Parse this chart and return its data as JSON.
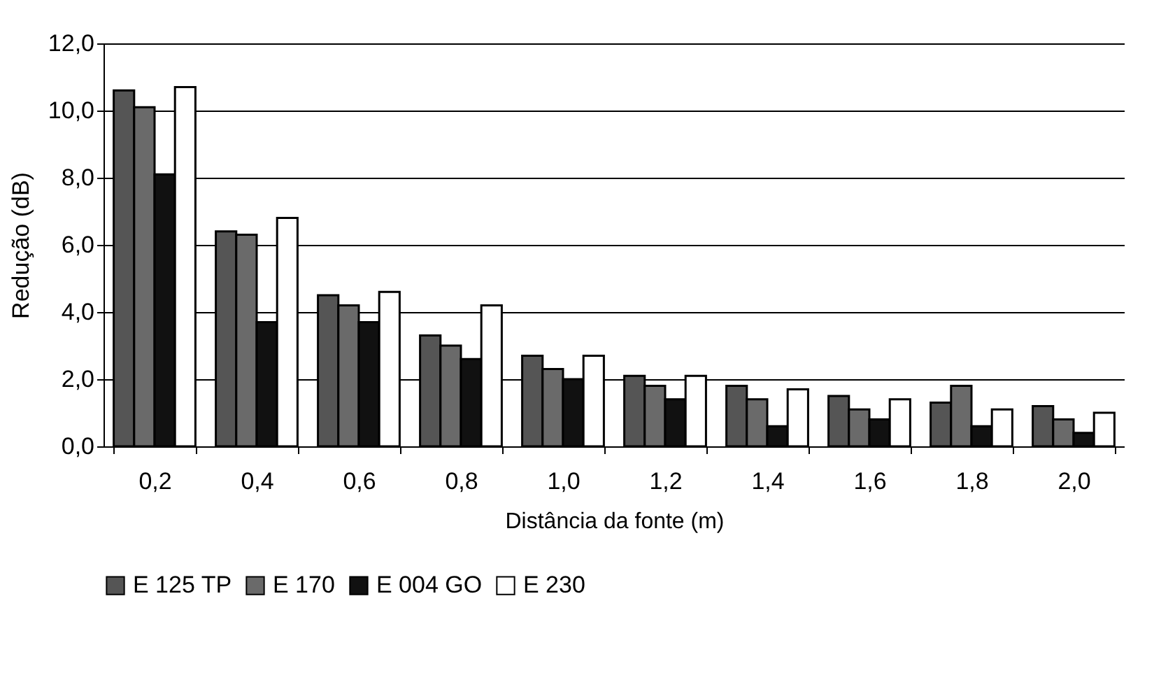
{
  "chart_data": {
    "type": "bar",
    "xlabel": "Distância da fonte (m)",
    "ylabel": "Redução (dB)",
    "categories": [
      "0,2",
      "0,4",
      "0,6",
      "0,8",
      "1,0",
      "1,2",
      "1,4",
      "1,6",
      "1,8",
      "2,0"
    ],
    "series": [
      {
        "name": "E 125 TP",
        "color": "#555555",
        "values": [
          10.6,
          6.4,
          4.5,
          3.3,
          2.7,
          2.1,
          1.8,
          1.5,
          1.3,
          1.2
        ]
      },
      {
        "name": "E 170",
        "color": "#6a6a6a",
        "values": [
          10.1,
          6.3,
          4.2,
          3.0,
          2.3,
          1.8,
          1.4,
          1.1,
          1.8,
          0.8
        ]
      },
      {
        "name": "E 004 GO",
        "color": "#111111",
        "values": [
          8.1,
          3.7,
          3.7,
          2.6,
          2.0,
          1.4,
          0.6,
          0.8,
          0.6,
          0.4
        ]
      },
      {
        "name": "E 230",
        "color": "#ffffff",
        "values": [
          10.7,
          6.8,
          4.6,
          4.2,
          2.7,
          2.1,
          1.7,
          1.4,
          1.1,
          1.0
        ]
      }
    ],
    "ylim": [
      0,
      12
    ],
    "yticks": [
      {
        "value": 0,
        "label": "0,0"
      },
      {
        "value": 2,
        "label": "2,0"
      },
      {
        "value": 4,
        "label": "4,0"
      },
      {
        "value": 6,
        "label": "6,0"
      },
      {
        "value": 8,
        "label": "8,0"
      },
      {
        "value": 10,
        "label": "10,0"
      },
      {
        "value": 12,
        "label": "12,0"
      }
    ],
    "grid": "y",
    "legend": "bottom"
  }
}
